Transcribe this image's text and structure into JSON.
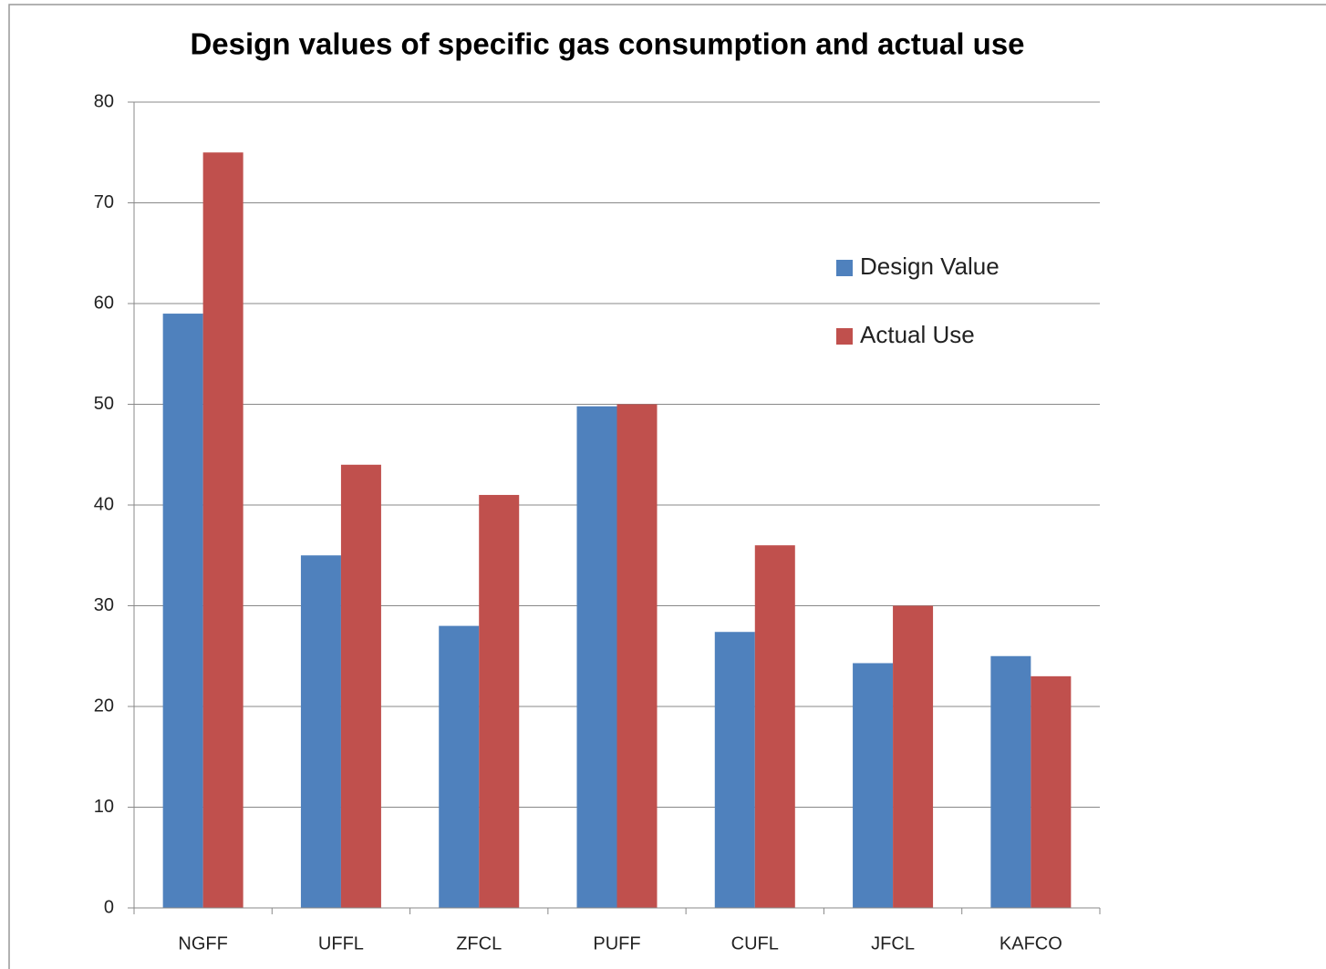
{
  "chart_data": {
    "type": "bar",
    "title": "Design values of specific gas consumption and actual use",
    "categories": [
      "NGFF",
      "UFFL",
      "ZFCL",
      "PUFF",
      "CUFL",
      "JFCL",
      "KAFCO"
    ],
    "series": [
      {
        "name": "Design Value",
        "color": "#4f81bd",
        "values": [
          59,
          35,
          28,
          49.8,
          27.4,
          24.3,
          25
        ]
      },
      {
        "name": "Actual Use",
        "color": "#c0504d",
        "values": [
          75,
          44,
          41,
          50,
          36,
          30,
          23
        ]
      }
    ],
    "ylim": [
      0,
      80
    ],
    "yticks": [
      0,
      10,
      20,
      30,
      40,
      50,
      60,
      70,
      80
    ],
    "grid": true,
    "legend": "right"
  }
}
